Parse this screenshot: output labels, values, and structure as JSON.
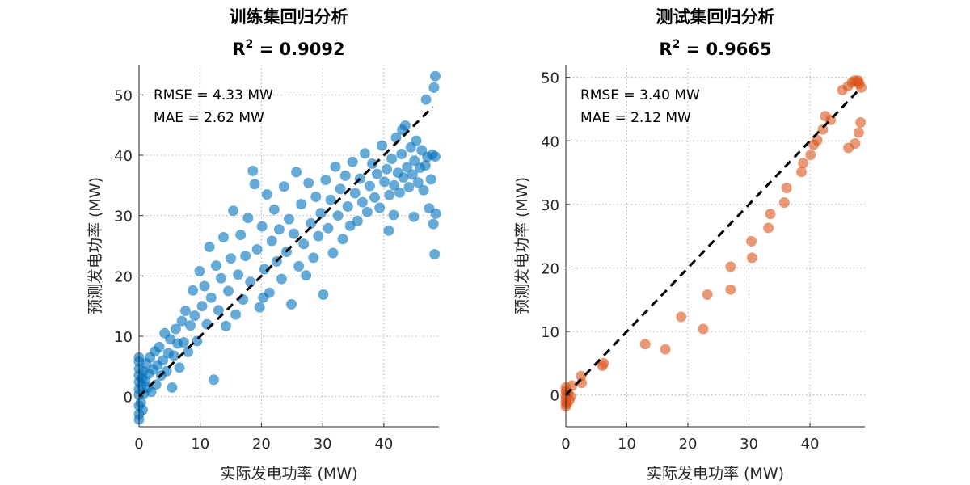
{
  "chart_data": [
    {
      "type": "scatter",
      "title": "训练集回归分析",
      "r2_label": "R",
      "r2_superscript": "2",
      "r2_text": " = 0.9092",
      "r2_value": 0.9092,
      "xlabel": "实际发电功率 (MW)",
      "ylabel": "预测发电功率 (MW)",
      "xlim": [
        0,
        49
      ],
      "ylim": [
        -5,
        55
      ],
      "xticks": [
        0,
        10,
        20,
        30,
        40
      ],
      "yticks": [
        0,
        10,
        20,
        30,
        40,
        50
      ],
      "grid": true,
      "annotations": [
        "RMSE = 4.33 MW",
        "MAE = 2.62 MW"
      ],
      "rmse": 4.33,
      "mae": 2.62,
      "reference_line": {
        "style": "dashed",
        "color": "#000000",
        "x": [
          0,
          48
        ],
        "y": [
          0,
          48
        ]
      },
      "series": [
        {
          "name": "train",
          "color": "#0072BD",
          "opacity": 0.6,
          "points": [
            [
              0,
              -3.8
            ],
            [
              0,
              -2.9
            ],
            [
              0,
              -1.5
            ],
            [
              0,
              0.3
            ],
            [
              0,
              1.2
            ],
            [
              0,
              2.4
            ],
            [
              0,
              3.5
            ],
            [
              0,
              4.6
            ],
            [
              0,
              5.8
            ],
            [
              0,
              6.5
            ],
            [
              0.3,
              -1.0
            ],
            [
              0.4,
              1.8
            ],
            [
              0.5,
              3.0
            ],
            [
              0.6,
              -2.2
            ],
            [
              0.7,
              4.2
            ],
            [
              0.8,
              0.5
            ],
            [
              1.0,
              2.6
            ],
            [
              1.2,
              5.5
            ],
            [
              1.4,
              1.5
            ],
            [
              1.6,
              3.8
            ],
            [
              1.8,
              6.5
            ],
            [
              2.0,
              0.8
            ],
            [
              2.3,
              4.5
            ],
            [
              2.6,
              7.5
            ],
            [
              2.8,
              2.0
            ],
            [
              3.0,
              5.2
            ],
            [
              3.3,
              8.2
            ],
            [
              3.6,
              3.5
            ],
            [
              3.9,
              6.0
            ],
            [
              4.2,
              10.5
            ],
            [
              4.5,
              4.2
            ],
            [
              4.8,
              7.2
            ],
            [
              5.1,
              9.5
            ],
            [
              5.4,
              1.5
            ],
            [
              5.7,
              6.8
            ],
            [
              6.0,
              11.2
            ],
            [
              6.3,
              8.8
            ],
            [
              6.6,
              4.8
            ],
            [
              7.0,
              12.5
            ],
            [
              7.3,
              9.0
            ],
            [
              7.6,
              14.2
            ],
            [
              8.0,
              7.4
            ],
            [
              8.4,
              11.8
            ],
            [
              8.8,
              17.6
            ],
            [
              9.1,
              13.4
            ],
            [
              9.5,
              9.2
            ],
            [
              9.9,
              20.8
            ],
            [
              10.3,
              15.0
            ],
            [
              10.7,
              18.3
            ],
            [
              11.1,
              12.0
            ],
            [
              11.5,
              24.8
            ],
            [
              11.8,
              16.4
            ],
            [
              12.2,
              2.8
            ],
            [
              12.6,
              21.7
            ],
            [
              13.0,
              14.3
            ],
            [
              13.4,
              19.6
            ],
            [
              13.8,
              26.4
            ],
            [
              14.2,
              11.7
            ],
            [
              14.6,
              17.5
            ],
            [
              15.0,
              22.9
            ],
            [
              15.4,
              30.8
            ],
            [
              15.8,
              13.6
            ],
            [
              16.2,
              20.2
            ],
            [
              16.6,
              26.8
            ],
            [
              17.0,
              16.1
            ],
            [
              17.4,
              23.3
            ],
            [
              17.8,
              29.6
            ],
            [
              18.2,
              19.0
            ],
            [
              18.6,
              37.4
            ],
            [
              18.9,
              35.2
            ],
            [
              19.3,
              24.4
            ],
            [
              19.7,
              14.8
            ],
            [
              20.1,
              28.2
            ],
            [
              20.5,
              21.1
            ],
            [
              20.9,
              33.5
            ],
            [
              21.3,
              17.2
            ],
            [
              21.7,
              25.8
            ],
            [
              22.1,
              31.0
            ],
            [
              22.5,
              22.4
            ],
            [
              22.9,
              27.7
            ],
            [
              23.3,
              19.5
            ],
            [
              23.7,
              34.8
            ],
            [
              24.1,
              24.0
            ],
            [
              24.5,
              29.4
            ],
            [
              24.9,
              15.3
            ],
            [
              25.3,
              27.0
            ],
            [
              25.7,
              37.2
            ],
            [
              26.1,
              21.6
            ],
            [
              26.5,
              31.9
            ],
            [
              26.9,
              25.3
            ],
            [
              27.3,
              20.1
            ],
            [
              27.7,
              35.4
            ],
            [
              28.1,
              28.7
            ],
            [
              28.5,
              23.0
            ],
            [
              28.9,
              33.1
            ],
            [
              29.3,
              26.6
            ],
            [
              29.7,
              30.4
            ],
            [
              30.1,
              16.9
            ],
            [
              30.5,
              35.9
            ],
            [
              30.9,
              27.9
            ],
            [
              31.3,
              32.6
            ],
            [
              31.7,
              23.8
            ],
            [
              32.1,
              38.1
            ],
            [
              32.5,
              30.0
            ],
            [
              32.9,
              34.4
            ],
            [
              33.3,
              26.1
            ],
            [
              33.7,
              36.6
            ],
            [
              34.1,
              31.5
            ],
            [
              34.5,
              28.3
            ],
            [
              34.9,
              38.9
            ],
            [
              35.3,
              33.7
            ],
            [
              35.7,
              29.1
            ],
            [
              36.1,
              36.1
            ],
            [
              36.5,
              32.2
            ],
            [
              36.9,
              40.3
            ],
            [
              37.3,
              30.6
            ],
            [
              37.7,
              34.9
            ],
            [
              38.1,
              38.6
            ],
            [
              38.5,
              33.0
            ],
            [
              38.9,
              36.9
            ],
            [
              39.3,
              31.3
            ],
            [
              39.7,
              41.6
            ],
            [
              40.1,
              35.6
            ],
            [
              40.5,
              37.7
            ],
            [
              40.9,
              33.4
            ],
            [
              41.3,
              39.4
            ],
            [
              41.7,
              35.0
            ],
            [
              42.0,
              42.9
            ],
            [
              42.3,
              37.1
            ],
            [
              42.6,
              33.8
            ],
            [
              42.9,
              40.2
            ],
            [
              43.2,
              36.3
            ],
            [
              43.5,
              44.9
            ],
            [
              43.8,
              38.0
            ],
            [
              44.1,
              34.7
            ],
            [
              44.4,
              41.3
            ],
            [
              44.7,
              36.8
            ],
            [
              45.0,
              39.1
            ],
            [
              45.3,
              42.4
            ],
            [
              45.6,
              35.5
            ],
            [
              45.9,
              37.9
            ],
            [
              46.2,
              40.8
            ],
            [
              46.5,
              34.2
            ],
            [
              46.8,
              38.3
            ],
            [
              47.1,
              39.7
            ],
            [
              47.4,
              31.2
            ],
            [
              47.7,
              36.0
            ],
            [
              47.9,
              40.1
            ],
            [
              48.1,
              28.6
            ],
            [
              48.3,
              23.6
            ],
            [
              48.4,
              39.8
            ],
            [
              48.5,
              30.3
            ],
            [
              48.2,
              51.2
            ],
            [
              48.4,
              53.1
            ],
            [
              46.9,
              49.2
            ],
            [
              44.9,
              29.8
            ],
            [
              43.0,
              44.2
            ],
            [
              41.6,
              30.1
            ],
            [
              40.8,
              27.5
            ],
            [
              20.3,
              16.4
            ]
          ]
        }
      ]
    },
    {
      "type": "scatter",
      "title": "测试集回归分析",
      "r2_label": "R",
      "r2_superscript": "2",
      "r2_text": " = 0.9665",
      "r2_value": 0.9665,
      "xlabel": "实际发电功率 (MW)",
      "ylabel": "预测发电功率 (MW)",
      "xlim": [
        0,
        49
      ],
      "ylim": [
        -5,
        52
      ],
      "xticks": [
        0,
        10,
        20,
        30,
        40
      ],
      "yticks": [
        0,
        10,
        20,
        30,
        40,
        50
      ],
      "grid": true,
      "annotations": [
        "RMSE = 3.40 MW",
        "MAE = 2.12 MW"
      ],
      "rmse": 3.4,
      "mae": 2.12,
      "reference_line": {
        "style": "dashed",
        "color": "#000000",
        "x": [
          0,
          48
        ],
        "y": [
          0,
          48
        ]
      },
      "series": [
        {
          "name": "test",
          "color": "#D95319",
          "opacity": 0.6,
          "points": [
            [
              0,
              -1.8
            ],
            [
              0,
              -1.2
            ],
            [
              0,
              -0.6
            ],
            [
              0,
              0
            ],
            [
              0,
              0.6
            ],
            [
              0,
              1.2
            ],
            [
              0.2,
              -1.4
            ],
            [
              0.4,
              0.3
            ],
            [
              0.6,
              -0.8
            ],
            [
              1.0,
              1.5
            ],
            [
              0.8,
              -0.2
            ],
            [
              2.6,
              1.9
            ],
            [
              2.5,
              3.0
            ],
            [
              6.0,
              4.6
            ],
            [
              6.2,
              5.0
            ],
            [
              13.0,
              8.0
            ],
            [
              16.3,
              7.2
            ],
            [
              18.9,
              12.3
            ],
            [
              22.5,
              10.4
            ],
            [
              23.2,
              15.8
            ],
            [
              27.0,
              16.6
            ],
            [
              27.0,
              20.2
            ],
            [
              30.4,
              24.2
            ],
            [
              30.5,
              21.6
            ],
            [
              33.2,
              26.3
            ],
            [
              33.5,
              28.5
            ],
            [
              35.8,
              30.3
            ],
            [
              36.2,
              32.6
            ],
            [
              38.6,
              35.1
            ],
            [
              38.9,
              36.5
            ],
            [
              40.1,
              37.8
            ],
            [
              40.6,
              39.4
            ],
            [
              41.2,
              40.1
            ],
            [
              42.1,
              41.8
            ],
            [
              42.5,
              43.9
            ],
            [
              43.4,
              43.3
            ],
            [
              45.3,
              48.0
            ],
            [
              46.2,
              48.6
            ],
            [
              46.9,
              49.2
            ],
            [
              47.3,
              49.5
            ],
            [
              47.7,
              49.3
            ],
            [
              48.1,
              49.0
            ],
            [
              48.4,
              48.4
            ],
            [
              46.3,
              38.9
            ],
            [
              47.4,
              39.6
            ],
            [
              48.0,
              41.3
            ],
            [
              48.3,
              42.9
            ],
            [
              47.9,
              49.5
            ]
          ]
        }
      ]
    }
  ]
}
